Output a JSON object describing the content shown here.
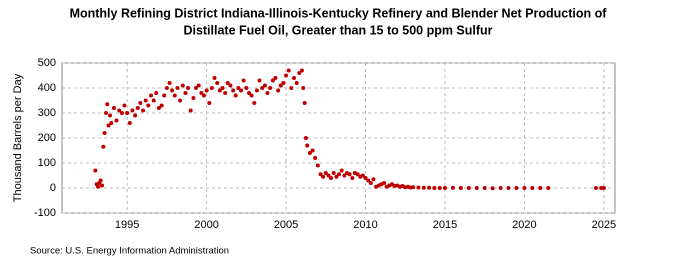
{
  "chart_data": {
    "type": "scatter",
    "title": [
      "Monthly Refining District Indiana-Illinois-Kentucky Refinery and Blender Net Production of",
      "Distillate Fuel Oil, Greater than 15 to 500 ppm Sulfur"
    ],
    "y_label": "Thousand Barrels per Day",
    "source": "Source: U.S. Energy Information Administration",
    "color": "#c00000",
    "grid": true,
    "xlim": [
      1990.9,
      2025.7
    ],
    "xticks": [
      1995,
      2000,
      2005,
      2010,
      2015,
      2020,
      2025
    ],
    "ylim": [
      -100,
      500
    ],
    "yticks": [
      -100,
      0,
      100,
      200,
      300,
      400,
      500
    ],
    "x": [
      1993.0,
      1993.08,
      1993.17,
      1993.25,
      1993.33,
      1993.42,
      1993.5,
      1993.58,
      1993.67,
      1993.75,
      1993.83,
      1993.92,
      1994.0,
      1994.17,
      1994.33,
      1994.5,
      1994.67,
      1994.83,
      1995.0,
      1995.17,
      1995.33,
      1995.5,
      1995.67,
      1995.83,
      1996.0,
      1996.17,
      1996.33,
      1996.5,
      1996.67,
      1996.83,
      1997.0,
      1997.17,
      1997.33,
      1997.5,
      1997.67,
      1997.83,
      1998.0,
      1998.17,
      1998.33,
      1998.5,
      1998.67,
      1998.83,
      1999.0,
      1999.17,
      1999.33,
      1999.5,
      1999.67,
      1999.83,
      2000.0,
      2000.17,
      2000.33,
      2000.5,
      2000.67,
      2000.83,
      2001.0,
      2001.17,
      2001.33,
      2001.5,
      2001.67,
      2001.83,
      2002.0,
      2002.17,
      2002.33,
      2002.5,
      2002.67,
      2002.83,
      2003.0,
      2003.17,
      2003.33,
      2003.5,
      2003.67,
      2003.83,
      2004.0,
      2004.17,
      2004.33,
      2004.5,
      2004.67,
      2004.83,
      2005.0,
      2005.17,
      2005.33,
      2005.5,
      2005.67,
      2005.83,
      2006.0,
      2006.08,
      2006.17,
      2006.25,
      2006.33,
      2006.5,
      2006.67,
      2006.83,
      2007.0,
      2007.17,
      2007.33,
      2007.5,
      2007.67,
      2007.83,
      2008.0,
      2008.17,
      2008.33,
      2008.5,
      2008.67,
      2008.83,
      2009.0,
      2009.17,
      2009.33,
      2009.5,
      2009.67,
      2009.83,
      2010.0,
      2010.17,
      2010.33,
      2010.5,
      2010.67,
      2010.83,
      2011.0,
      2011.17,
      2011.33,
      2011.5,
      2011.67,
      2011.83,
      2012.0,
      2012.17,
      2012.33,
      2012.5,
      2012.67,
      2012.83,
      2013.0,
      2013.33,
      2013.67,
      2014.0,
      2014.33,
      2014.67,
      2015.0,
      2015.5,
      2016.0,
      2016.5,
      2017.0,
      2017.5,
      2018.0,
      2018.5,
      2019.0,
      2019.5,
      2020.0,
      2020.5,
      2021.0,
      2021.5,
      2024.5,
      2024.83,
      2025.0
    ],
    "values": [
      70,
      15,
      5,
      20,
      30,
      10,
      165,
      220,
      300,
      335,
      250,
      290,
      260,
      320,
      270,
      310,
      300,
      330,
      300,
      260,
      310,
      290,
      320,
      340,
      310,
      350,
      330,
      370,
      350,
      380,
      320,
      330,
      370,
      400,
      420,
      390,
      370,
      400,
      350,
      410,
      380,
      400,
      310,
      360,
      400,
      410,
      380,
      370,
      390,
      340,
      400,
      440,
      420,
      390,
      400,
      380,
      420,
      410,
      390,
      370,
      400,
      390,
      430,
      400,
      380,
      370,
      340,
      390,
      430,
      400,
      410,
      380,
      400,
      430,
      440,
      390,
      410,
      420,
      450,
      470,
      400,
      440,
      420,
      460,
      470,
      400,
      340,
      200,
      170,
      140,
      150,
      120,
      90,
      55,
      45,
      60,
      50,
      40,
      60,
      45,
      55,
      70,
      50,
      60,
      55,
      40,
      60,
      55,
      45,
      50,
      40,
      30,
      20,
      35,
      5,
      10,
      15,
      20,
      5,
      10,
      15,
      8,
      10,
      5,
      8,
      3,
      5,
      2,
      3,
      2,
      1,
      1,
      0,
      0,
      0,
      1,
      0,
      0,
      0,
      0,
      -1,
      0,
      0,
      0,
      0,
      0,
      0,
      0,
      0,
      0,
      0
    ]
  }
}
